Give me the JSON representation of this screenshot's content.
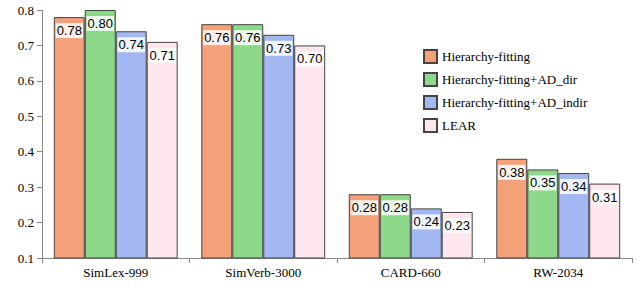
{
  "chart_data": {
    "type": "bar",
    "categories": [
      "SimLex-999",
      "SimVerb-3000",
      "CARD-660",
      "RW-2034"
    ],
    "series": [
      {
        "name": "Hierarchy-fitting",
        "color": "#f4a078",
        "values": [
          0.78,
          0.76,
          0.28,
          0.38
        ],
        "value_labels": [
          "0.78",
          "0.76",
          "0.28",
          "0.38"
        ]
      },
      {
        "name": "Hierarchy-fitting+AD_dir",
        "color": "#8ed88a",
        "values": [
          0.8,
          0.76,
          0.28,
          0.35
        ],
        "value_labels": [
          "0.80",
          "0.76",
          "0.28",
          "0.35"
        ]
      },
      {
        "name": "Hierarchy-fitting+AD_indir",
        "color": "#a3b8f2",
        "values": [
          0.74,
          0.73,
          0.24,
          0.34
        ],
        "value_labels": [
          "0.74",
          "0.73",
          "0.24",
          "0.34"
        ]
      },
      {
        "name": "LEAR",
        "color": "#fde6ec",
        "values": [
          0.71,
          0.7,
          0.23,
          0.31
        ],
        "value_labels": [
          "0.71",
          "0.70",
          "0.23",
          "0.31"
        ]
      }
    ],
    "ylim": [
      0.1,
      0.8
    ],
    "yticks": [
      0.1,
      0.2,
      0.3,
      0.4,
      0.5,
      0.6,
      0.7,
      0.8
    ],
    "grid": false,
    "legend": "right",
    "data_labels": true
  }
}
